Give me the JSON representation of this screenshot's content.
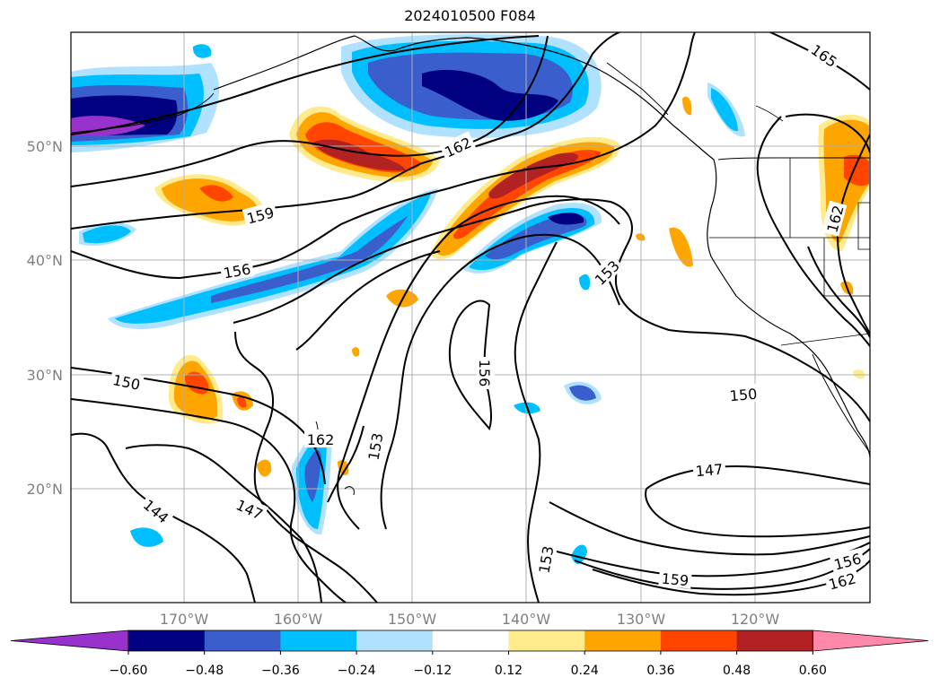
{
  "title": "2024010500 F084",
  "axes": {
    "lat_labels": [
      "50°N",
      "40°N",
      "30°N",
      "20°N"
    ],
    "lon_labels": [
      "170°W",
      "160°W",
      "150°W",
      "140°W",
      "130°W",
      "120°W"
    ]
  },
  "contour_labels": [
    {
      "text": "165"
    },
    {
      "text": "162"
    },
    {
      "text": "159"
    },
    {
      "text": "156"
    },
    {
      "text": "153"
    },
    {
      "text": "150"
    },
    {
      "text": "156"
    },
    {
      "text": "162"
    },
    {
      "text": "153"
    },
    {
      "text": "150"
    },
    {
      "text": "147"
    },
    {
      "text": "144"
    },
    {
      "text": "147"
    },
    {
      "text": "153"
    },
    {
      "text": "159"
    },
    {
      "text": "156"
    },
    {
      "text": "162"
    },
    {
      "text": "162"
    }
  ],
  "colorbar": {
    "colors": [
      "#9932cc",
      "#000080",
      "#3a5fcd",
      "#00bfff",
      "#b0e2ff",
      "#ffffff",
      "#ffeb8c",
      "#ffa500",
      "#ff4500",
      "#b22222",
      "#ff88aa"
    ],
    "ticks": [
      "−0.60",
      "−0.48",
      "−0.36",
      "−0.24",
      "−0.12",
      "0.12",
      "0.24",
      "0.36",
      "0.48",
      "0.60"
    ]
  }
}
